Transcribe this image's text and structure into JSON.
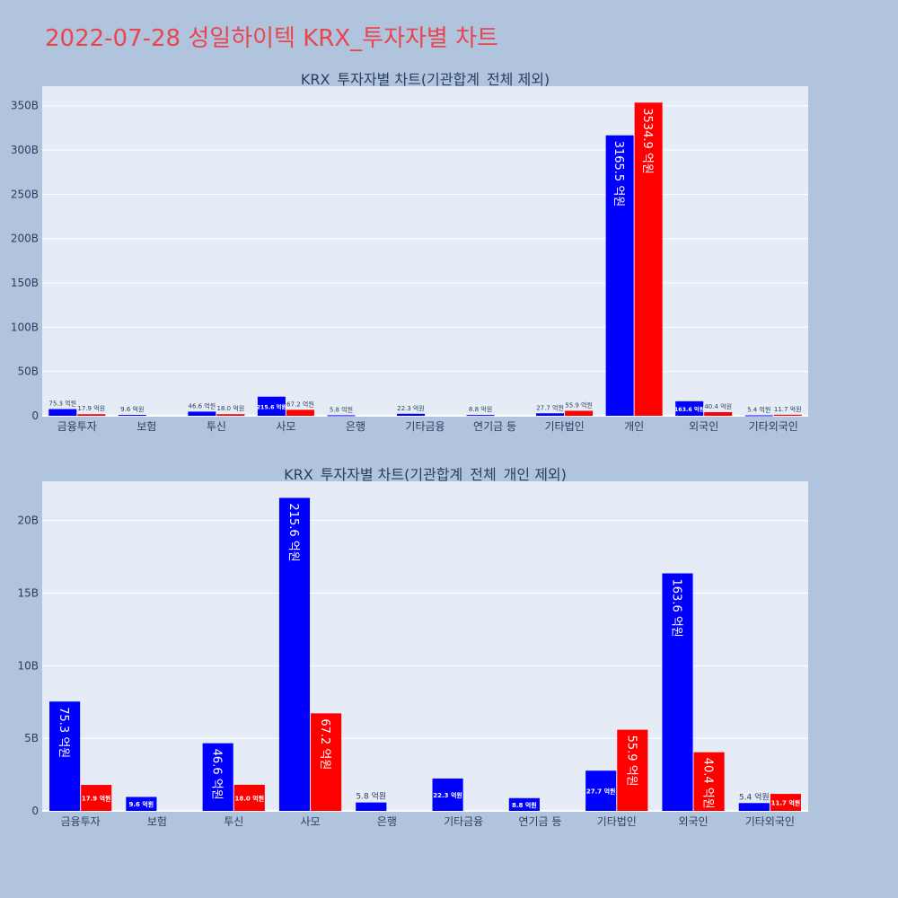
{
  "page": {
    "title": "2022-07-28 성일하이텍 KRX_투자자별 차트"
  },
  "colors": {
    "background": "#b0c4de",
    "plot_bg": "#e5ecf6",
    "buy": "#0000ff",
    "sell": "#ff0000",
    "title": "#e8464f",
    "text": "#2a3f5f"
  },
  "chart_data": [
    {
      "type": "bar",
      "title": "KRX_투자자별 차트(기관합계_전체 제외)",
      "categories": [
        "금융투자",
        "보험",
        "투신",
        "사모",
        "은행",
        "기타금융",
        "연기금 등",
        "기타법인",
        "개인",
        "외국인",
        "기타외국인"
      ],
      "series": [
        {
          "color": "#0000ff",
          "values": [
            7.53,
            0.96,
            4.66,
            21.56,
            0.58,
            2.23,
            0.88,
            2.77,
            316.55,
            16.36,
            0.54
          ],
          "labels": [
            "75.3 억원",
            "9.6 억원",
            "46.6 억원",
            "215.6 억원",
            "5.8 억원",
            "22.3 억원",
            "8.8 억원",
            "27.7 억원",
            "3165.5 억원",
            "163.6 억원",
            "5.4 억원"
          ]
        },
        {
          "color": "#ff0000",
          "values": [
            1.79,
            0,
            1.8,
            6.72,
            0,
            0,
            0,
            5.59,
            353.49,
            4.04,
            1.17
          ],
          "labels": [
            "17.9 억원",
            "",
            "18.0 억원",
            "67.2 억원",
            "",
            "",
            "",
            "55.9 억원",
            "3534.9 억원",
            "40.4 억원",
            "11.7 억원"
          ]
        }
      ],
      "yticks": [
        "0",
        "50B",
        "100B",
        "150B",
        "200B",
        "250B",
        "300B",
        "350B"
      ],
      "ytick_values": [
        0,
        50,
        100,
        150,
        200,
        250,
        300,
        350
      ],
      "ylim": [
        0,
        372
      ],
      "grid": true,
      "unit": "B"
    },
    {
      "type": "bar",
      "title": "KRX_투자자별 차트(기관합계_전체_개인 제외)",
      "categories": [
        "금융투자",
        "보험",
        "투신",
        "사모",
        "은행",
        "기타금융",
        "연기금 등",
        "기타법인",
        "외국인",
        "기타외국인"
      ],
      "series": [
        {
          "color": "#0000ff",
          "values": [
            7.53,
            0.96,
            4.66,
            21.56,
            0.58,
            2.23,
            0.88,
            2.77,
            16.36,
            0.54
          ],
          "labels": [
            "75.3 억원",
            "9.6 억원",
            "46.6 억원",
            "215.6 억원",
            "5.8 억원",
            "22.3 억원",
            "8.8 억원",
            "27.7 억원",
            "163.6 억원",
            "5.4 억원"
          ]
        },
        {
          "color": "#ff0000",
          "values": [
            1.79,
            0,
            1.8,
            6.72,
            0,
            0,
            0,
            5.59,
            4.04,
            1.17
          ],
          "labels": [
            "17.9 억원",
            "",
            "18.0 억원",
            "67.2 억원",
            "",
            "",
            "",
            "55.9 억원",
            "40.4 억원",
            "11.7 억원"
          ]
        }
      ],
      "yticks": [
        "0",
        "5B",
        "10B",
        "15B",
        "20B"
      ],
      "ytick_values": [
        0,
        5,
        10,
        15,
        20
      ],
      "ylim": [
        0,
        22.7
      ],
      "grid": true,
      "unit": "B"
    }
  ]
}
